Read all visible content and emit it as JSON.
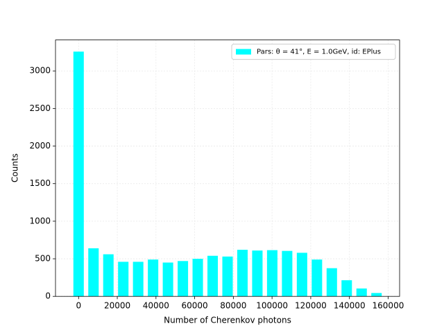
{
  "chart_data": {
    "type": "histogram",
    "xlabel": "Number of Cherenkov photons",
    "ylabel": "Counts",
    "bins": [
      -3850,
      3850,
      11550,
      19250,
      26950,
      34650,
      42350,
      50050,
      57750,
      65450,
      73150,
      80850,
      88550,
      96250,
      103950,
      111650,
      119350,
      127050,
      134750,
      142450,
      150150,
      157850
    ],
    "series": [
      {
        "name": "Pars: θ = 41°, E = 1.0GeV, id: EPlus",
        "color": "#00ffff",
        "values": [
          3257,
          640,
          560,
          460,
          460,
          490,
          450,
          470,
          500,
          540,
          530,
          620,
          610,
          615,
          605,
          580,
          490,
          375,
          215,
          105,
          45
        ]
      }
    ],
    "xlim": [
      -11935,
      165935
    ],
    "ylim": [
      0,
      3412
    ],
    "xticks": [
      0,
      20000,
      40000,
      60000,
      80000,
      100000,
      120000,
      140000,
      160000
    ],
    "yticks": [
      0,
      500,
      1000,
      1500,
      2000,
      2500,
      3000
    ],
    "grid": true,
    "legend": "upper right"
  }
}
